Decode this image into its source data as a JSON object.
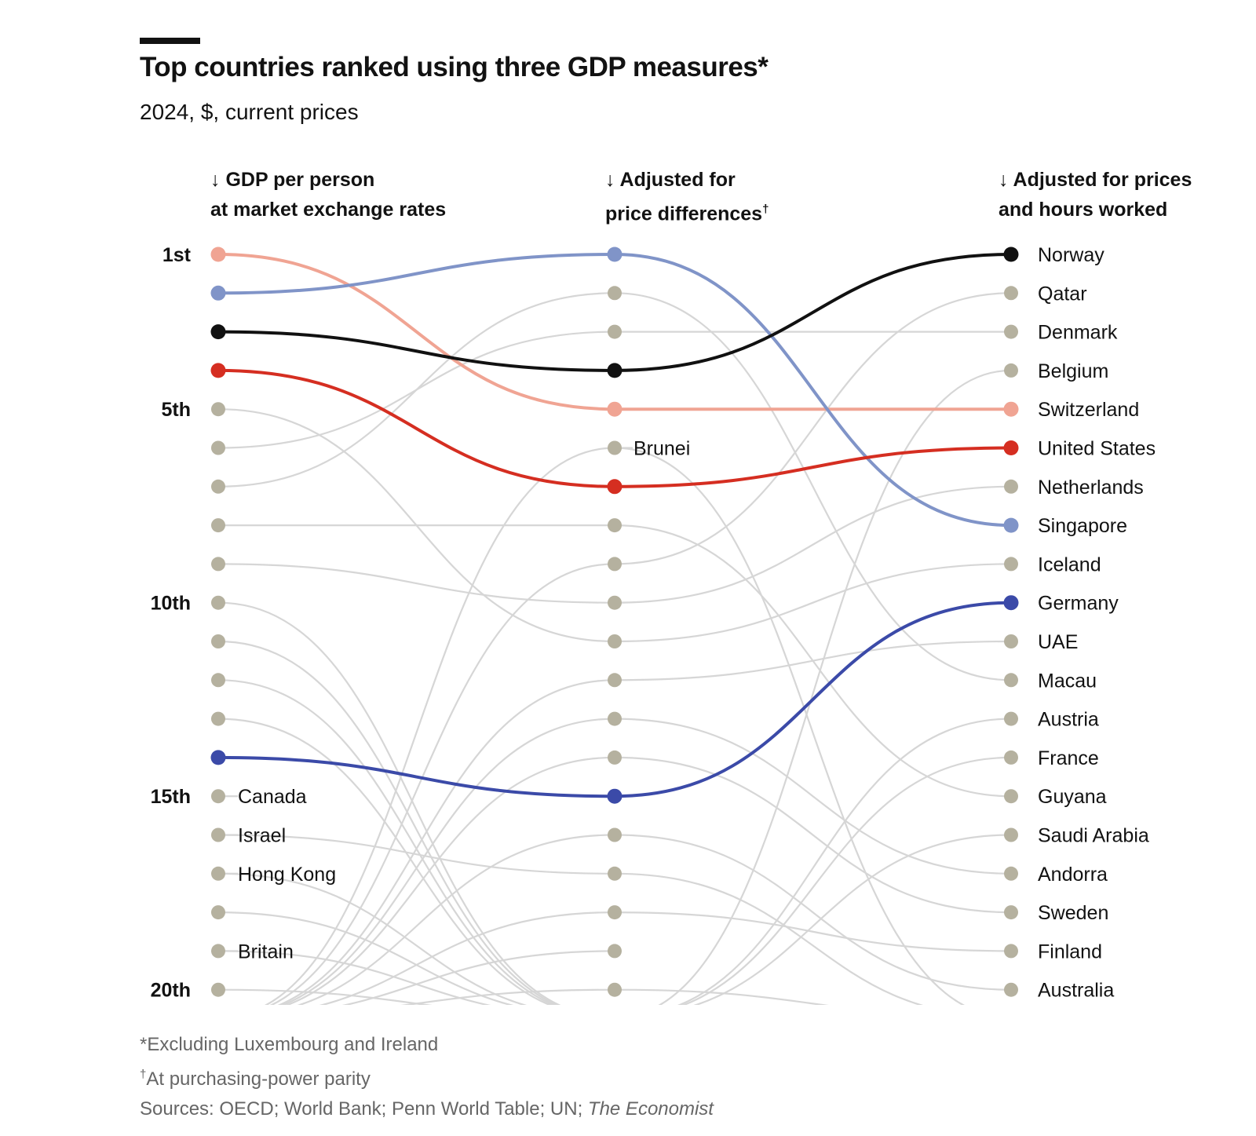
{
  "header": {
    "title": "Top countries ranked using three GDP measures*",
    "subtitle": "2024, $, current prices"
  },
  "columns": {
    "col1": {
      "arrow": "↓",
      "line1": "GDP per person",
      "line2": "at market exchange rates"
    },
    "col2": {
      "arrow": "↓",
      "line1": "Adjusted for",
      "line2": "price differences",
      "mark": "†"
    },
    "col3": {
      "arrow": "↓",
      "line1": "Adjusted for prices",
      "line2": "and hours worked"
    }
  },
  "rank_labels": [
    "1st",
    "5th",
    "10th",
    "15th",
    "20th"
  ],
  "footnotes": {
    "note1": "*Excluding Luxembourg and Ireland",
    "note2_mark": "†",
    "note2": "At purchasing-power parity",
    "sources_prefix": "Sources: OECD; World Bank; Penn World Table; UN; ",
    "sources_italic": "The Economist"
  },
  "colors": {
    "norway": "#111111",
    "switzerland": "#f0a493",
    "united_states": "#d52e21",
    "singapore": "#8094c8",
    "germany": "#3b4aa8",
    "other_dot": "#b5b19f",
    "other_line": "#d6d6d6"
  },
  "chart_data": {
    "type": "slope",
    "stages": [
      "GDP per person at market exchange rates",
      "Adjusted for price differences",
      "Adjusted for prices and hours worked"
    ],
    "rank_range": [
      1,
      20
    ],
    "right_labels": [
      "Norway",
      "Qatar",
      "Denmark",
      "Belgium",
      "Switzerland",
      "United States",
      "Netherlands",
      "Singapore",
      "Iceland",
      "Germany",
      "UAE",
      "Macau",
      "Austria",
      "France",
      "Guyana",
      "Saudi Arabia",
      "Andorra",
      "Sweden",
      "Finland",
      "Australia"
    ],
    "left_labels": [
      {
        "rank": 15,
        "label": "Canada"
      },
      {
        "rank": 16,
        "label": "Israel"
      },
      {
        "rank": 17,
        "label": "Hong Kong"
      },
      {
        "rank": 19,
        "label": "Britain"
      }
    ],
    "middle_labels": [
      {
        "rank": 6,
        "label": "Brunei"
      }
    ],
    "highlighted": [
      {
        "name": "Switzerland",
        "color": "#f0a493",
        "ranks": [
          1,
          5,
          5
        ]
      },
      {
        "name": "Singapore",
        "color": "#8094c8",
        "ranks": [
          2,
          1,
          8
        ]
      },
      {
        "name": "Norway",
        "color": "#111111",
        "ranks": [
          3,
          4,
          1
        ]
      },
      {
        "name": "United States",
        "color": "#d52e21",
        "ranks": [
          4,
          7,
          6
        ]
      },
      {
        "name": "Germany",
        "color": "#3b4aa8",
        "ranks": [
          14,
          15,
          10
        ]
      }
    ],
    "other_links_1_2": [
      [
        5,
        11
      ],
      [
        6,
        3
      ],
      [
        7,
        2
      ],
      [
        8,
        8
      ],
      [
        9,
        10
      ],
      [
        10,
        21
      ],
      [
        11,
        21
      ],
      [
        12,
        21
      ],
      [
        13,
        21
      ],
      [
        16,
        17
      ],
      [
        17,
        21
      ],
      [
        18,
        21
      ],
      [
        19,
        21
      ],
      [
        20,
        21
      ],
      [
        21,
        6
      ],
      [
        21,
        9
      ],
      [
        21,
        12
      ],
      [
        21,
        13
      ],
      [
        21,
        14
      ],
      [
        21,
        16
      ],
      [
        21,
        18
      ],
      [
        21,
        19
      ],
      [
        21,
        20
      ]
    ],
    "other_links_2_3": [
      [
        2,
        12
      ],
      [
        3,
        3
      ],
      [
        6,
        21
      ],
      [
        8,
        15
      ],
      [
        9,
        2
      ],
      [
        10,
        7
      ],
      [
        11,
        9
      ],
      [
        12,
        11
      ],
      [
        13,
        17
      ],
      [
        14,
        18
      ],
      [
        16,
        20
      ],
      [
        17,
        21
      ],
      [
        18,
        19
      ],
      [
        20,
        21
      ],
      [
        21,
        4
      ],
      [
        21,
        13
      ],
      [
        21,
        14
      ],
      [
        21,
        16
      ]
    ]
  }
}
